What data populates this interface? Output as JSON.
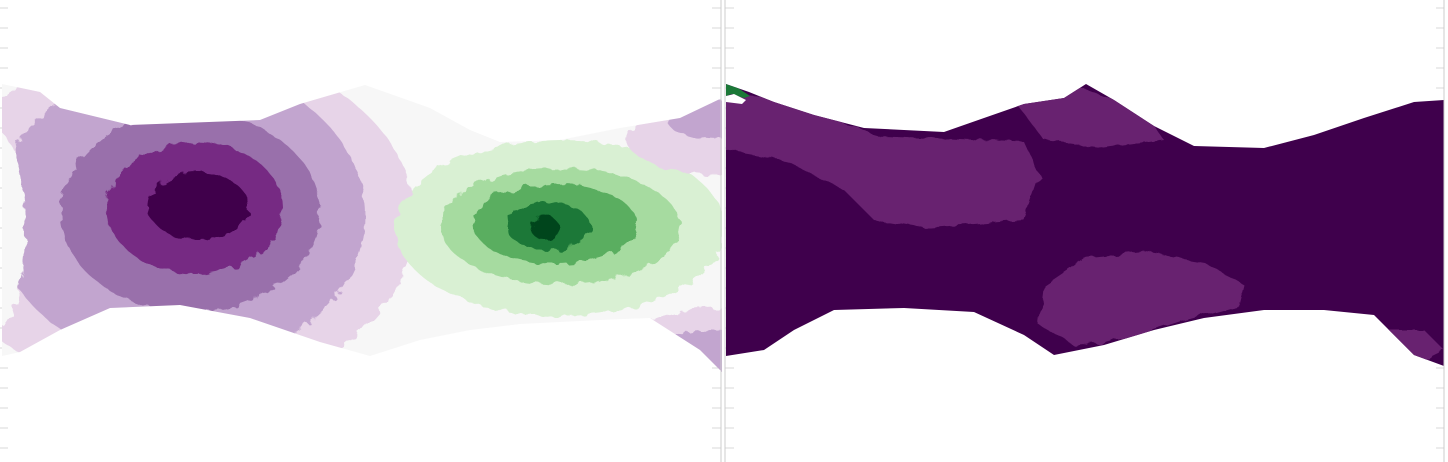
{
  "chart_data": [
    {
      "type": "contour",
      "title": "",
      "xlabel": "",
      "ylabel": "",
      "colormap": [
        "#40004b",
        "#762a83",
        "#9970ab",
        "#c2a5cf",
        "#e7d4e8",
        "#f7f7f7",
        "#d9f0d3",
        "#a6dba0",
        "#5aae61",
        "#1b7837",
        "#00441b"
      ],
      "background": "#ffffff",
      "tick_labels_visible": false,
      "features": [
        {
          "kind": "minimum",
          "x": 0.27,
          "y": 0.45,
          "color": "#40004b"
        },
        {
          "kind": "maximum",
          "x": 0.75,
          "y": 0.49,
          "color": "#1b7837"
        }
      ],
      "grid": false,
      "legend": "none"
    },
    {
      "type": "contour",
      "title": "",
      "xlabel": "",
      "ylabel": "",
      "colormap": [
        "#40004b",
        "#762a83",
        "#9970ab",
        "#1b7837",
        "#00441b"
      ],
      "background": "#ffffff",
      "tick_labels_visible": false,
      "features": [
        {
          "kind": "band",
          "x": 0.3,
          "y": 0.38,
          "color": "#67226f"
        },
        {
          "kind": "band",
          "x": 0.6,
          "y": 0.63,
          "color": "#67226f"
        },
        {
          "kind": "spot",
          "x": 0.02,
          "y": 0.2,
          "color": "#1b7837"
        }
      ],
      "grid": false,
      "legend": "none"
    }
  ]
}
